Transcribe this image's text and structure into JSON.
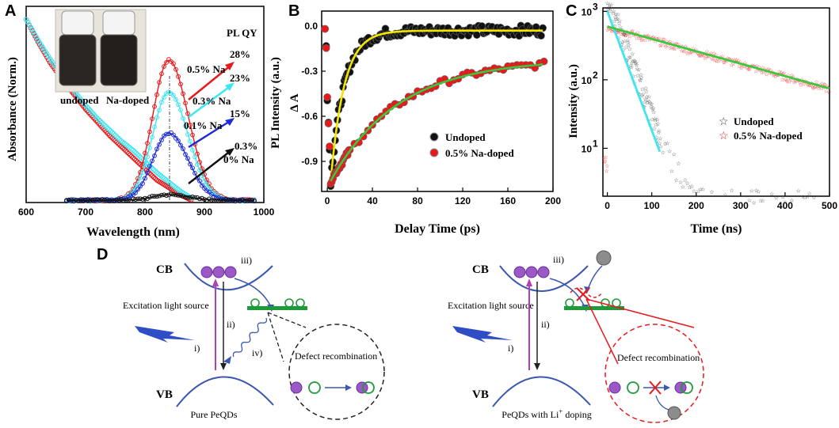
{
  "panels": {
    "A": {
      "letter": "A",
      "xlabel": "Wavelength (nm)",
      "ylabel": "Absorbance (Norm.)",
      "ylabel2": "PL Intensity (a.u.)",
      "xticks": [
        "600",
        "700",
        "800",
        "900",
        "1000"
      ],
      "legend_title": "PL QY",
      "series_labels": [
        {
          "qy": "28%",
          "name": "0.5% Na",
          "color": "#e8191b"
        },
        {
          "qy": "23%",
          "name": "0.3% Na",
          "color": "#3fe6f2"
        },
        {
          "qy": "15%",
          "name": "0.1% Na",
          "color": "#1f2bd6"
        },
        {
          "qy": "0.3%",
          "name": "0% Na",
          "color": "#111111"
        }
      ],
      "inset_labels": [
        "undoped",
        "Na-doped"
      ]
    },
    "B": {
      "letter": "B",
      "xlabel": "Delay Time (ps)",
      "ylabel": "Δ A",
      "xticks": [
        "0",
        "40",
        "80",
        "120",
        "160",
        "200"
      ],
      "yticks": [
        "0.0",
        "-0.3",
        "-0.6",
        "-0.9"
      ],
      "legend": [
        {
          "name": "Undoped",
          "color": "#111111"
        },
        {
          "name": "0.5% Na-doped",
          "color": "#e8191b"
        }
      ]
    },
    "C": {
      "letter": "C",
      "xlabel": "Time (ns)",
      "ylabel": "Intensity (a.u.)",
      "xticks": [
        "0",
        "100",
        "200",
        "300",
        "400",
        "500"
      ],
      "yticks": [
        "10",
        "10",
        "10"
      ],
      "yexp": [
        "3",
        "2",
        "1"
      ],
      "legend": [
        {
          "name": "Undoped",
          "color": "#111111"
        },
        {
          "name": "0.5% Na-doped",
          "color": "#e8191b"
        }
      ]
    },
    "D": {
      "letter": "D",
      "left": {
        "cb": "CB",
        "vb": "VB",
        "excitation": "Excitation light source",
        "steps": [
          "i)",
          "ii)",
          "iii)",
          "iv)"
        ],
        "defect": "Defect recombination",
        "caption": "Pure PeQDs"
      },
      "right": {
        "cb": "CB",
        "vb": "VB",
        "excitation": "Excitation light source",
        "steps": [
          "i)",
          "ii)",
          "iii)"
        ],
        "defect": "Defect recombination",
        "caption": "PeQDs with Li",
        "caption_sup": "+",
        "caption_tail": " doping"
      }
    }
  },
  "chart_data": [
    {
      "type": "line",
      "title": "",
      "xlabel": "Wavelength (nm)",
      "ylabel": "Absorbance (Norm.) / PL Intensity (a.u.)",
      "xlim": [
        600,
        1000
      ],
      "ylim": [
        0,
        1.05
      ],
      "series": [
        {
          "name": "Absorbance 0.5% Na",
          "color": "#e8191b",
          "x": [
            600,
            620,
            640,
            660,
            680,
            700,
            720,
            740,
            760,
            780,
            800,
            820,
            840,
            860,
            880
          ],
          "values": [
            0.98,
            0.86,
            0.75,
            0.66,
            0.58,
            0.5,
            0.43,
            0.36,
            0.3,
            0.24,
            0.18,
            0.12,
            0.08,
            0.04,
            0.01
          ]
        },
        {
          "name": "Absorbance undoped",
          "color": "#3fe6f2",
          "x": [
            600,
            620,
            640,
            660,
            680,
            700,
            720,
            740,
            760,
            780,
            800,
            820,
            840,
            860,
            880
          ],
          "values": [
            0.98,
            0.87,
            0.77,
            0.68,
            0.6,
            0.52,
            0.45,
            0.39,
            0.33,
            0.28,
            0.22,
            0.16,
            0.11,
            0.06,
            0.02
          ]
        },
        {
          "name": "PL 0.5% Na",
          "color": "#e8191b",
          "peak_nm": 840,
          "peak": 0.75,
          "qy": "28%"
        },
        {
          "name": "PL 0.3% Na",
          "color": "#3fe6f2",
          "peak_nm": 840,
          "peak": 0.58,
          "qy": "23%"
        },
        {
          "name": "PL 0.1% Na",
          "color": "#1f2bd6",
          "peak_nm": 840,
          "peak": 0.36,
          "qy": "15%"
        },
        {
          "name": "PL 0% Na",
          "color": "#111111",
          "peak_nm": 840,
          "peak": 0.03,
          "qy": "0.3%"
        }
      ]
    },
    {
      "type": "scatter",
      "title": "",
      "xlabel": "Delay Time (ps)",
      "ylabel": "Δ A",
      "xlim": [
        -5,
        200
      ],
      "ylim": [
        -1.1,
        0.1
      ],
      "series": [
        {
          "name": "Undoped",
          "color": "#111111",
          "fit_color": "#f2e600",
          "model": "A = -1.03*exp(-t/12) - 0.03 (t>=3)",
          "tau_ps": 12,
          "offset": -0.03
        },
        {
          "name": "0.5% Na-doped",
          "color": "#e8191b",
          "fit_color": "#3cc83c",
          "model": "A = -0.80*exp(-t/60) - 0.22 (t>=3)",
          "tau_ps": 60,
          "offset": -0.22
        }
      ]
    },
    {
      "type": "scatter",
      "title": "",
      "xlabel": "Time (ns)",
      "ylabel": "Intensity (a.u.)",
      "xlim": [
        -10,
        500
      ],
      "ylim_log10": [
        0.3,
        3.05
      ],
      "series": [
        {
          "name": "Undoped",
          "color": "#111111",
          "fit_color": "#3fe6f2",
          "peak": 1000,
          "tau_ns": 25,
          "background": 2
        },
        {
          "name": "0.5% Na-doped",
          "color": "#e8191b",
          "fit_color": "#3cc83c",
          "peak": 600,
          "tau_ns": 240,
          "background": 0
        }
      ]
    }
  ]
}
